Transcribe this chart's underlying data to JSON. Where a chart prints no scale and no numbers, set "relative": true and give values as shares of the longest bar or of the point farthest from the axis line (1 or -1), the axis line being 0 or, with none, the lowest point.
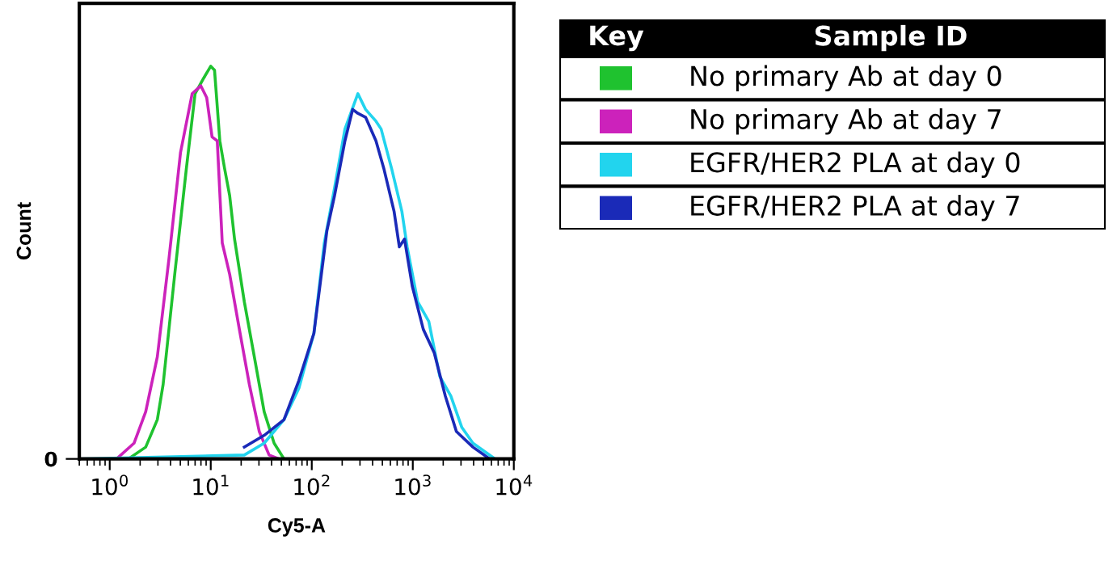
{
  "chart_data": {
    "type": "line",
    "relative": true,
    "xlabel": "Cy5-A",
    "ylabel": "Count",
    "log": "x",
    "xlim": [
      0.5,
      10000
    ],
    "xticks": [
      {
        "value": 1,
        "label": "10$^{0}$"
      },
      {
        "value": 10,
        "label": "10$^{1}$"
      },
      {
        "value": 100,
        "label": "10$^{2}$"
      },
      {
        "value": 1000,
        "label": "10$^{3}$"
      },
      {
        "value": 10000,
        "label": "10$^{4}$"
      }
    ],
    "legend": "top right",
    "legend_title": "Sample ID",
    "annotations": [
      "Key",
      "0"
    ],
    "grid": false,
    "series": [
      {
        "name": "No primary Ab at day 0",
        "color": "#1fc22f",
        "x": [
          1.53,
          2.27,
          2.96,
          3.38,
          4.4,
          5.74,
          7.0,
          8.53,
          10,
          10.9,
          12.3,
          13.7,
          15.4,
          17.2,
          21.5,
          27.0,
          33.8,
          42.4,
          53.1,
          10000
        ],
        "values": [
          0,
          0.03,
          0.1,
          0.19,
          0.47,
          0.74,
          0.93,
          0.97,
          1.0,
          0.99,
          0.81,
          0.74,
          0.67,
          0.56,
          0.4,
          0.26,
          0.12,
          0.04,
          0,
          0
        ]
      },
      {
        "name": "No primary Ab at day 7",
        "color": "#cc22bb",
        "x": [
          0.5,
          1.17,
          1.74,
          2.27,
          2.96,
          3.86,
          5.02,
          6.55,
          7.98,
          9.12,
          10.3,
          11.6,
          13.0,
          15.4,
          19.2,
          24.1,
          30.2,
          37.8,
          47.4
        ],
        "values": [
          0,
          0,
          0.04,
          0.12,
          0.26,
          0.51,
          0.78,
          0.93,
          0.95,
          0.92,
          0.82,
          0.81,
          0.55,
          0.47,
          0.33,
          0.19,
          0.07,
          0.01,
          0
        ]
      },
      {
        "name": "EGFR/HER2 PLA at day 0",
        "color": "#22d4ee",
        "x": [
          0.5,
          21.5,
          33.8,
          53.1,
          74.6,
          105,
          133,
          168,
          213,
          286,
          341,
          432,
          486,
          616,
          780,
          879,
          1120,
          1440,
          1850,
          2380,
          3060,
          3940,
          5070,
          6520,
          10000
        ],
        "values": [
          0,
          0.01,
          0.04,
          0.1,
          0.18,
          0.32,
          0.55,
          0.69,
          0.84,
          0.93,
          0.89,
          0.86,
          0.84,
          0.74,
          0.63,
          0.54,
          0.4,
          0.35,
          0.21,
          0.16,
          0.08,
          0.04,
          0.02,
          0,
          0
        ]
      },
      {
        "name": "EGFR/HER2 PLA at day 7",
        "color": "#1a2ab8",
        "x": [
          21.5,
          33.8,
          53.1,
          74.6,
          105,
          141,
          168,
          213,
          254,
          286,
          341,
          432,
          516,
          653,
          736,
          828,
          988,
          1270,
          1630,
          2100,
          2700,
          3940,
          5070,
          5750
        ],
        "values": [
          0.03,
          0.06,
          0.1,
          0.2,
          0.32,
          0.58,
          0.67,
          0.81,
          0.89,
          0.88,
          0.87,
          0.81,
          0.74,
          0.63,
          0.54,
          0.56,
          0.44,
          0.33,
          0.27,
          0.16,
          0.07,
          0.03,
          0.01,
          0
        ]
      }
    ]
  }
}
